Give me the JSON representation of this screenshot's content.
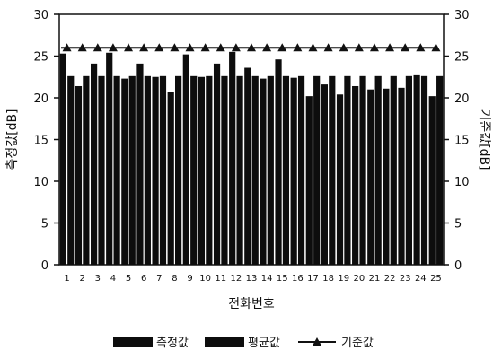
{
  "chart_data": {
    "type": "bar",
    "categories": [
      "1",
      "2",
      "3",
      "4",
      "5",
      "6",
      "7",
      "8",
      "9",
      "10",
      "11",
      "12",
      "13",
      "14",
      "15",
      "16",
      "17",
      "18",
      "19",
      "20",
      "21",
      "22",
      "23",
      "24",
      "25"
    ],
    "series": [
      {
        "name": "측정값",
        "type": "bar",
        "values": [
          25.3,
          21.4,
          24.1,
          25.4,
          22.3,
          24.1,
          22.5,
          20.7,
          25.2,
          22.5,
          24.1,
          25.5,
          23.6,
          22.3,
          24.6,
          22.4,
          20.2,
          21.6,
          20.4,
          21.4,
          21.0,
          21.1,
          21.2,
          22.7,
          20.2
        ]
      },
      {
        "name": "평균값",
        "type": "bar",
        "values": [
          22.6,
          22.6,
          22.6,
          22.6,
          22.6,
          22.6,
          22.6,
          22.6,
          22.6,
          22.6,
          22.6,
          22.6,
          22.6,
          22.6,
          22.6,
          22.6,
          22.6,
          22.6,
          22.6,
          22.6,
          22.6,
          22.6,
          22.6,
          22.6,
          22.6
        ]
      },
      {
        "name": "기준값",
        "type": "line",
        "marker": "triangle",
        "values": [
          26,
          26,
          26,
          26,
          26,
          26,
          26,
          26,
          26,
          26,
          26,
          26,
          26,
          26,
          26,
          26,
          26,
          26,
          26,
          26,
          26,
          26,
          26,
          26,
          26
        ]
      }
    ],
    "title": "",
    "xlabel": "전화번호",
    "ylabel": "측정값[dB]",
    "y2label": "기준값[dB]",
    "ylim": [
      0,
      30
    ],
    "y2lim": [
      0,
      30
    ],
    "yticks": [
      "0",
      "5",
      "10",
      "15",
      "20",
      "25",
      "30"
    ],
    "grid": false,
    "legend": "bottom",
    "colors": {
      "bars": "#0d0d0d",
      "line": "#111111",
      "axis": "#111111",
      "background": "#ffffff"
    }
  }
}
